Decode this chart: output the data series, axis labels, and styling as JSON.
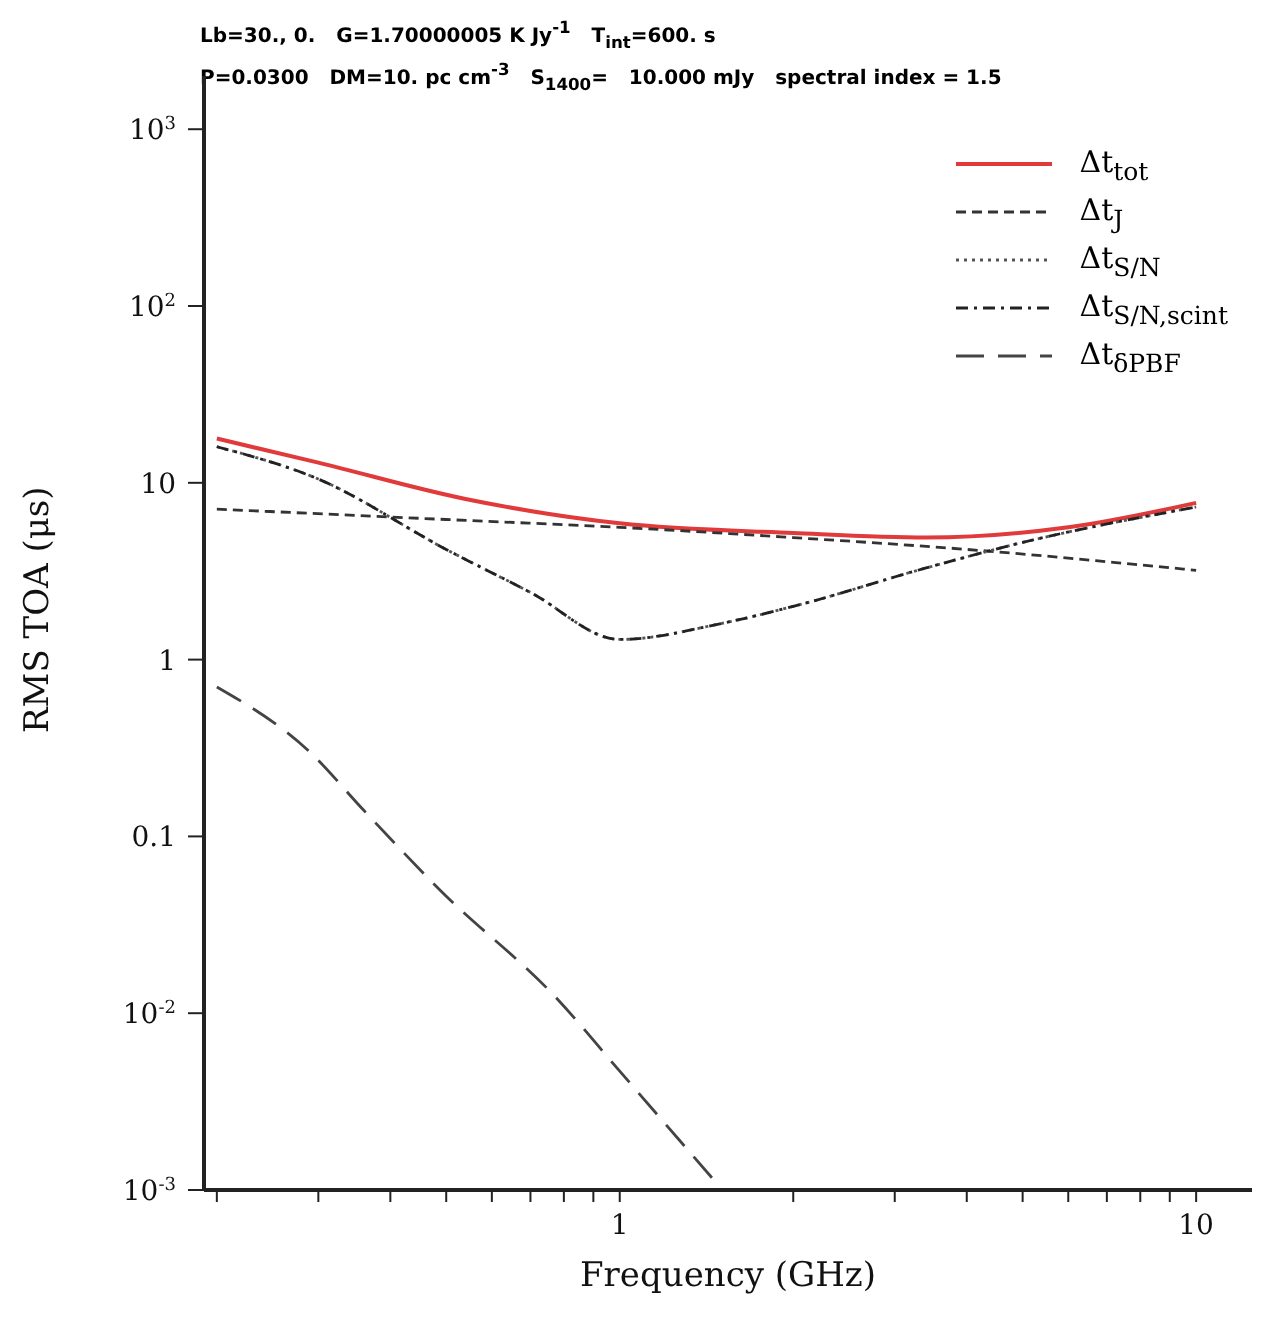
{
  "chart_data": {
    "type": "line",
    "title": "Lb=30., 0.   G=1.70000005 K Jy$^{-1}$   T$_{int}$=600. s",
    "subtitle": "P=0.0300   DM=10. pc cm$^{-3}$   S$_{1400}$=   10.000 mJy   spectral index = 1.5",
    "xlabel": "Frequency (GHz)",
    "ylabel": "RMS TOA (μs)",
    "log": "xy",
    "legend": "top right",
    "xlim": [
      0.19,
      12.5
    ],
    "ylim": [
      0.001,
      2000
    ],
    "xticks": [
      {
        "value": 0.2,
        "label": null
      },
      {
        "value": 0.3,
        "label": null
      },
      {
        "value": 0.4,
        "label": null
      },
      {
        "value": 0.5,
        "label": null
      },
      {
        "value": 0.6,
        "label": null
      },
      {
        "value": 0.7,
        "label": null
      },
      {
        "value": 0.8,
        "label": null
      },
      {
        "value": 0.9,
        "label": null
      },
      1,
      {
        "value": 2,
        "label": null
      },
      {
        "value": 3,
        "label": null
      },
      {
        "value": 4,
        "label": null
      },
      {
        "value": 5,
        "label": null
      },
      {
        "value": 6,
        "label": null
      },
      {
        "value": 7,
        "label": null
      },
      {
        "value": 8,
        "label": null
      },
      {
        "value": 9,
        "label": null
      },
      10
    ],
    "yticks": [
      {
        "value": 0.001,
        "label": "10$^{-3}$"
      },
      {
        "value": 0.01,
        "label": "10$^{-2}$"
      },
      0.1,
      1,
      10,
      {
        "value": 100,
        "label": "10$^{2}$"
      },
      {
        "value": 1000,
        "label": "10$^{3}$"
      }
    ],
    "series": [
      {
        "name": "Δt$_{tot}$",
        "color": "#e03a3a",
        "line_style": "solid",
        "x": [
          0.2,
          0.3,
          0.54,
          1,
          2,
          3.4,
          6,
          10
        ],
        "values": [
          17.8,
          13,
          8.1,
          5.9,
          5.2,
          4.9,
          5.6,
          7.7
        ]
      },
      {
        "name": "Δt$_{J}$",
        "color": "#333333",
        "line_style": "dashed",
        "x": [
          0.2,
          0.5,
          1,
          2,
          4,
          10
        ],
        "values": [
          7.1,
          6.2,
          5.6,
          4.9,
          4.2,
          3.2
        ]
      },
      {
        "name": "Δt$_{S/N}$",
        "color": "#555555",
        "line_style": "dotted",
        "x": [
          0.2,
          0.3,
          0.5,
          0.7,
          1,
          1.5,
          2,
          3.4,
          5,
          10
        ],
        "values": [
          16,
          10.5,
          4.2,
          2.4,
          1.3,
          1.6,
          2.0,
          3.3,
          4.6,
          7.3
        ]
      },
      {
        "name": "Δt$_{S/N,scint}$",
        "color": "#222222",
        "line_style": "dashdot",
        "x": [
          0.2,
          0.3,
          0.5,
          0.7,
          1,
          1.5,
          2,
          3.4,
          5,
          10
        ],
        "values": [
          16,
          10.5,
          4.2,
          2.4,
          1.3,
          1.6,
          2.0,
          3.3,
          4.6,
          7.3
        ]
      },
      {
        "name": "Δt$_{δPBF}$",
        "color": "#444444",
        "line_style": "longdash",
        "x": [
          0.2,
          0.29,
          0.36,
          0.49,
          0.78,
          1,
          1.47
        ],
        "values": [
          0.7,
          0.3,
          0.14,
          0.049,
          0.012,
          0.0047,
          0.0011
        ]
      }
    ]
  }
}
